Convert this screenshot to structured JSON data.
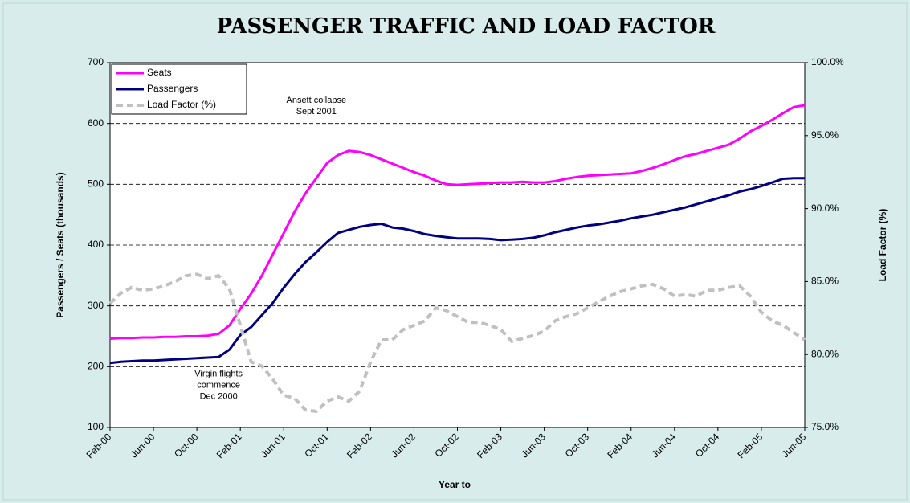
{
  "chart_data": {
    "type": "line",
    "title": "PASSENGER TRAFFIC AND LOAD FACTOR",
    "x_label": "Year to",
    "y_label": "Passengers / Seats  (thousands)",
    "y2_label": "Load Factor (%)",
    "categories": [
      "Feb-00",
      null,
      null,
      null,
      "Jun-00",
      null,
      null,
      null,
      "Oct-00",
      null,
      null,
      null,
      "Feb-01",
      null,
      null,
      null,
      "Jun-01",
      null,
      null,
      null,
      "Oct-01",
      null,
      null,
      null,
      "Feb-02",
      null,
      null,
      null,
      "Jun-02",
      null,
      null,
      null,
      "Oct-02",
      null,
      null,
      null,
      "Feb-03",
      null,
      null,
      null,
      "Jun-03",
      null,
      null,
      null,
      "Oct-03",
      null,
      null,
      null,
      "Feb-04",
      null,
      null,
      null,
      "Jun-04",
      null,
      null,
      null,
      "Oct-04",
      null,
      null,
      null,
      "Feb-05",
      null,
      null,
      null,
      "Jun-05"
    ],
    "series": [
      {
        "name": "Seats",
        "color": "#ff00ff",
        "values": [
          246,
          247,
          247,
          248,
          248,
          249,
          249,
          250,
          250,
          251,
          254,
          268,
          295,
          320,
          350,
          385,
          420,
          455,
          485,
          510,
          535,
          548,
          555,
          553,
          548,
          541,
          534,
          527,
          520,
          514,
          506,
          500,
          499,
          500,
          501,
          502,
          503,
          503,
          504,
          503,
          503,
          505,
          509,
          512,
          514,
          515,
          516,
          517,
          518,
          522,
          527,
          533,
          540,
          546,
          550,
          555,
          560,
          565,
          575,
          587,
          596,
          606,
          617,
          627,
          630
        ]
      },
      {
        "name": "Passengers",
        "color": "#000080",
        "values": [
          206,
          208,
          209,
          210,
          210,
          211,
          212,
          213,
          214,
          215,
          216,
          228,
          252,
          265,
          285,
          305,
          330,
          352,
          372,
          388,
          405,
          420,
          425,
          430,
          433,
          435,
          429,
          427,
          423,
          418,
          415,
          413,
          411,
          411,
          411,
          410,
          408,
          409,
          410,
          412,
          416,
          421,
          425,
          429,
          432,
          434,
          437,
          440,
          444,
          447,
          450,
          454,
          458,
          462,
          467,
          472,
          477,
          482,
          488,
          492,
          497,
          503,
          509,
          510,
          510
        ]
      },
      {
        "name": "Load Factor (%)",
        "color": "#c0c0c0",
        "axis": "y2",
        "dashed": true,
        "values": [
          83.5,
          84.2,
          84.6,
          84.4,
          84.5,
          84.7,
          85.0,
          85.4,
          85.5,
          85.2,
          85.4,
          84.5,
          82.0,
          79.5,
          79.2,
          78.3,
          77.2,
          77.0,
          76.2,
          76.1,
          76.8,
          77.1,
          76.8,
          77.5,
          79.5,
          81.0,
          81.0,
          81.7,
          82.0,
          82.3,
          83.2,
          83.0,
          82.6,
          82.2,
          82.2,
          82.0,
          81.7,
          80.9,
          81.1,
          81.3,
          81.6,
          82.3,
          82.6,
          82.8,
          83.2,
          83.6,
          84.0,
          84.3,
          84.5,
          84.7,
          84.8,
          84.5,
          84.0,
          84.1,
          84.0,
          84.4,
          84.4,
          84.6,
          84.7,
          84.0,
          82.9,
          82.3,
          82.0,
          81.5,
          81.0
        ]
      }
    ],
    "ylim": [
      100,
      700
    ],
    "yticks": [
      100,
      200,
      300,
      400,
      500,
      600,
      700
    ],
    "y2lim": [
      75,
      100
    ],
    "y2ticks": [
      {
        "value": 75,
        "label": "75.0%"
      },
      {
        "value": 80,
        "label": "80.0%"
      },
      {
        "value": 85,
        "label": "85.0%"
      },
      {
        "value": 90,
        "label": "90.0%"
      },
      {
        "value": 95,
        "label": "95.0%"
      },
      {
        "value": 100,
        "label": "100.0%"
      }
    ],
    "grid": true,
    "legend": "top-left",
    "annotations": [
      {
        "lines": [
          "Ansett collapse",
          "Sept 2001"
        ],
        "index": 19,
        "value": 638
      },
      {
        "lines": [
          "Virgin flights",
          "commence",
          "Dec 2000"
        ],
        "index": 10,
        "value": 188
      }
    ]
  }
}
